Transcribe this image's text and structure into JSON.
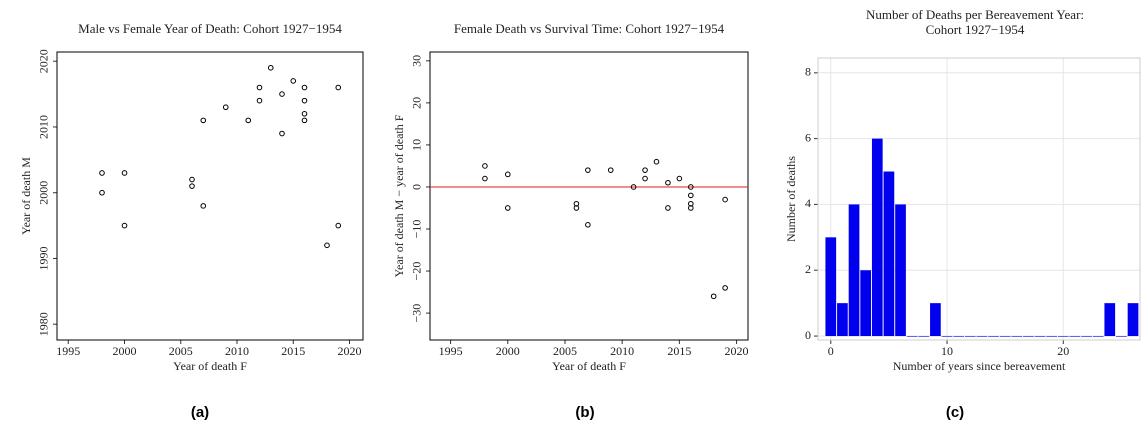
{
  "chart_data": [
    {
      "type": "scatter",
      "title": [
        "Male vs Female Year of Death: Cohort 1927−1954"
      ],
      "x_label": "Year of death F",
      "y_label": "Year of death M",
      "caption": "(a)",
      "x": [
        1998,
        1998,
        2000,
        2000,
        2006,
        2006,
        2007,
        2007,
        2009,
        2011,
        2012,
        2012,
        2013,
        2014,
        2014,
        2015,
        2016,
        2016,
        2016,
        2016,
        2018,
        2019,
        2019
      ],
      "values": [
        2003,
        2000,
        2003,
        1995,
        2002,
        2001,
        2011,
        1998,
        2013,
        2011,
        2016,
        2014,
        2019,
        2015,
        2009,
        2017,
        2016,
        2014,
        2012,
        2011,
        1992,
        2016,
        1995
      ],
      "color": "#000000",
      "xlim": [
        1994,
        2021.2
      ],
      "xticks": [
        1995,
        2000,
        2005,
        2010,
        2015,
        2020
      ],
      "ylim": [
        1977.6,
        2021.4
      ],
      "yticks": [
        1980,
        1990,
        2000,
        2010,
        2020
      ]
    },
    {
      "type": "scatter",
      "title": [
        "Female Death vs Survival Time: Cohort 1927−1954"
      ],
      "x_label": "Year of death F",
      "y_label": "Year of death M − year of death F",
      "caption": "(b)",
      "x": [
        1998,
        1998,
        2000,
        2000,
        2006,
        2006,
        2007,
        2007,
        2009,
        2011,
        2012,
        2012,
        2013,
        2014,
        2014,
        2015,
        2016,
        2016,
        2016,
        2016,
        2018,
        2019,
        2019
      ],
      "values": [
        5,
        2,
        3,
        -5,
        -4,
        -5,
        4,
        -9,
        4,
        0,
        4,
        2,
        6,
        1,
        -5,
        2,
        0,
        -2,
        -4,
        -5,
        -26,
        -3,
        -24
      ],
      "color": "#000000",
      "reference_line": 0,
      "reference_color": "#e41a1c",
      "xlim": [
        1993.2,
        2021
      ],
      "xticks": [
        1995,
        2000,
        2005,
        2010,
        2015,
        2020
      ],
      "ylim": [
        -36.4,
        32.1
      ],
      "yticks": [
        {
          "value": -30,
          "label": "−30"
        },
        {
          "value": -20,
          "label": "−20"
        },
        {
          "value": -10,
          "label": "−10"
        },
        0,
        10,
        20,
        30
      ]
    },
    {
      "type": "bar",
      "title": [
        "Number of Deaths per Bereavement Year:",
        "Cohort 1927−1954"
      ],
      "x_label": "Number of years since bereavement",
      "y_label": "Number of deaths",
      "caption": "(c)",
      "x": [
        0,
        1,
        2,
        3,
        4,
        5,
        6,
        7,
        8,
        9,
        10,
        11,
        12,
        13,
        14,
        15,
        16,
        17,
        18,
        19,
        20,
        21,
        22,
        23,
        24,
        25,
        26
      ],
      "values": [
        3,
        1,
        4,
        2,
        6,
        5,
        4,
        0,
        0,
        1,
        0,
        0,
        0,
        0,
        0,
        0,
        0,
        0,
        0,
        0,
        0,
        0,
        0,
        0,
        1,
        0,
        1
      ],
      "color": "#0000ee",
      "grid": true,
      "xlim": [
        -1.1,
        26.6
      ],
      "xticks": [
        0,
        10,
        20
      ],
      "ylim": [
        -0.12,
        8.45
      ],
      "yticks": [
        0,
        2,
        4,
        6,
        8
      ]
    }
  ]
}
